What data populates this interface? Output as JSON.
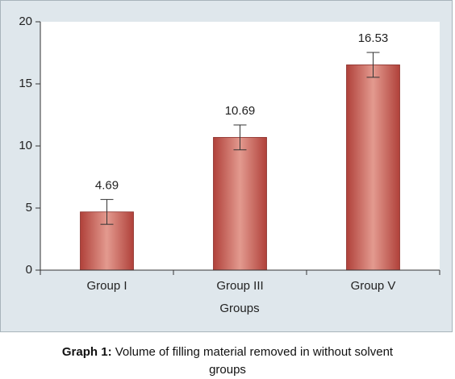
{
  "chart_data": {
    "type": "bar",
    "categories": [
      "Group I",
      "Group III",
      "Group V"
    ],
    "values": [
      4.69,
      10.69,
      16.53
    ],
    "errors": [
      1.0,
      1.0,
      1.0
    ],
    "xlabel": "Groups",
    "color": "#bf4a42",
    "ylim": [
      0,
      20
    ],
    "yticks": [
      0,
      5,
      10,
      15,
      20
    ]
  },
  "caption": {
    "label": "Graph 1:",
    "text": "Volume of filling material removed in without solvent groups"
  }
}
